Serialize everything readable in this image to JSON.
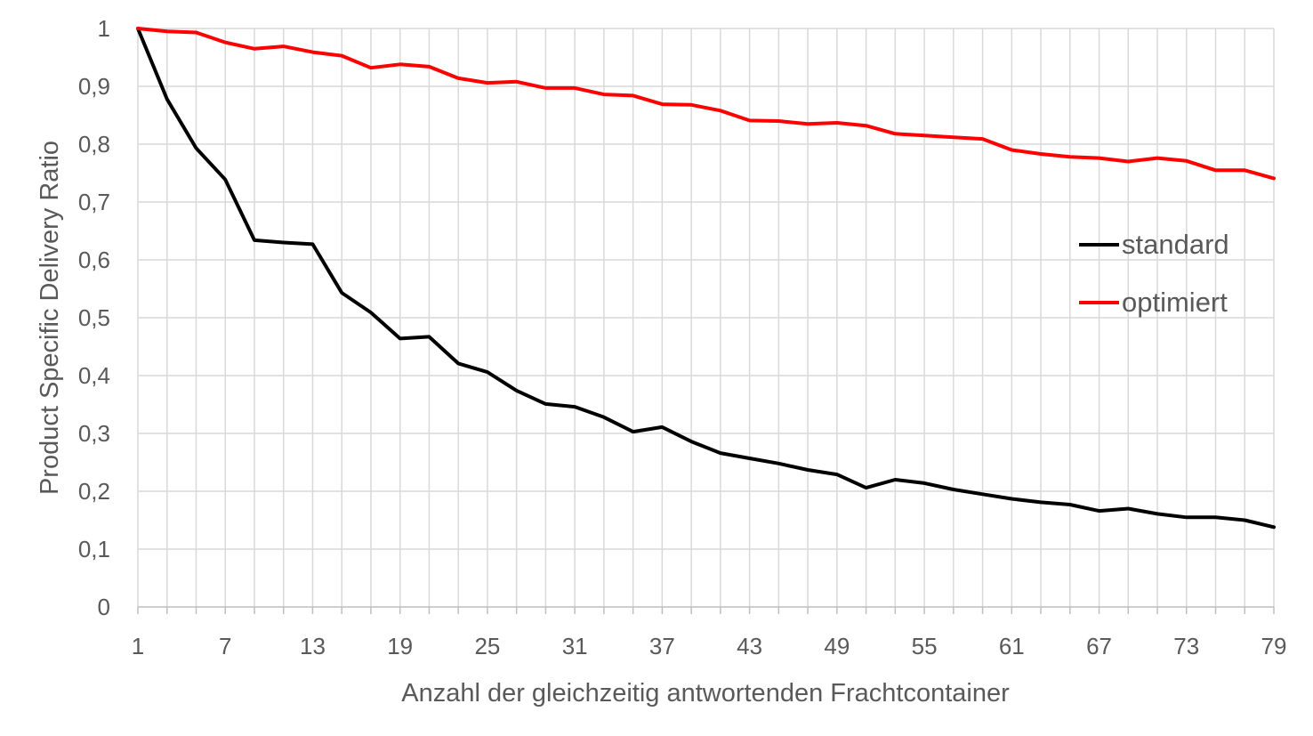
{
  "chart_data": {
    "type": "line",
    "title": "",
    "xlabel": "Anzahl der gleichzeitig antwortenden Frachtcontainer",
    "ylabel": "Product Specific Delivery Ratio",
    "x": [
      1,
      3,
      5,
      7,
      9,
      11,
      13,
      15,
      17,
      19,
      21,
      23,
      25,
      27,
      29,
      31,
      33,
      35,
      37,
      39,
      41,
      43,
      45,
      47,
      49,
      51,
      53,
      55,
      57,
      59,
      61,
      63,
      65,
      67,
      69,
      71,
      73,
      75,
      77,
      79
    ],
    "x_tick_labels": [
      "1",
      "7",
      "13",
      "19",
      "25",
      "31",
      "37",
      "43",
      "49",
      "55",
      "61",
      "67",
      "73",
      "79"
    ],
    "y_tick_labels": [
      "0",
      "0,1",
      "0,2",
      "0,3",
      "0,4",
      "0,5",
      "0,6",
      "0,7",
      "0,8",
      "0,9",
      "1"
    ],
    "ylim": [
      0,
      1
    ],
    "xlim": [
      1,
      79
    ],
    "grid": true,
    "legend_position": "right",
    "series": [
      {
        "name": "standard",
        "color": "#000000",
        "values": [
          1.0,
          0.878,
          0.793,
          0.739,
          0.634,
          0.63,
          0.627,
          0.543,
          0.509,
          0.464,
          0.467,
          0.421,
          0.406,
          0.374,
          0.351,
          0.346,
          0.328,
          0.303,
          0.311,
          0.286,
          0.266,
          0.257,
          0.248,
          0.237,
          0.229,
          0.206,
          0.22,
          0.214,
          0.203,
          0.195,
          0.187,
          0.181,
          0.177,
          0.166,
          0.17,
          0.161,
          0.155,
          0.155,
          0.15,
          0.138
        ]
      },
      {
        "name": "optimiert",
        "color": "#ff0000",
        "values": [
          1.0,
          0.995,
          0.993,
          0.976,
          0.965,
          0.969,
          0.959,
          0.953,
          0.932,
          0.938,
          0.934,
          0.914,
          0.906,
          0.908,
          0.897,
          0.897,
          0.886,
          0.884,
          0.869,
          0.868,
          0.858,
          0.841,
          0.84,
          0.835,
          0.837,
          0.832,
          0.818,
          0.815,
          0.812,
          0.809,
          0.79,
          0.783,
          0.778,
          0.776,
          0.77,
          0.776,
          0.771,
          0.755,
          0.755,
          0.741
        ]
      }
    ]
  }
}
